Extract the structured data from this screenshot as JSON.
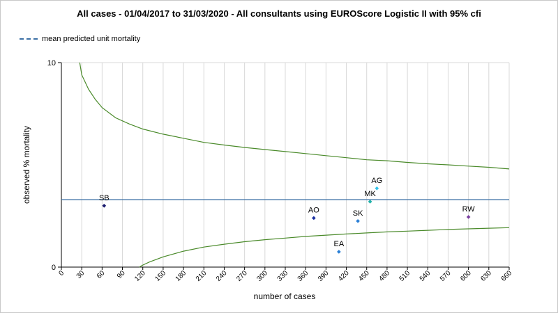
{
  "chart_data": {
    "type": "scatter",
    "title": "All cases - 01/04/2017 to 31/03/2020 - All consultants using EUROScore Logistic II with 95% cfi",
    "xlabel": "number of cases",
    "ylabel": "observed % mortality",
    "xlim": [
      0,
      660
    ],
    "ylim": [
      0,
      10
    ],
    "x_ticks": [
      "0",
      "30",
      "60",
      "90",
      "120",
      "150",
      "180",
      "210",
      "240",
      "270",
      "300",
      "330",
      "360",
      "390",
      "420",
      "450",
      "480",
      "510",
      "540",
      "570",
      "600",
      "630",
      "660"
    ],
    "y_ticks": [
      "0",
      "10"
    ],
    "grid": "vertical",
    "legend": {
      "position": "top-left",
      "entries": [
        {
          "label": "mean predicted unit mortality",
          "style": "dashed",
          "color": "#3a6fa5"
        }
      ]
    },
    "mean_predicted_mortality": 3.3,
    "control_limit_color": "#4a8a2a",
    "upper_control_limit": {
      "x": [
        27,
        30,
        40,
        50,
        60,
        80,
        100,
        120,
        150,
        180,
        210,
        240,
        270,
        300,
        330,
        360,
        390,
        420,
        450,
        480,
        510,
        540,
        570,
        600,
        630,
        660
      ],
      "y": [
        10.0,
        9.4,
        8.7,
        8.2,
        7.8,
        7.3,
        7.0,
        6.75,
        6.5,
        6.3,
        6.1,
        5.97,
        5.85,
        5.75,
        5.65,
        5.55,
        5.45,
        5.35,
        5.25,
        5.2,
        5.12,
        5.05,
        5.0,
        4.94,
        4.88,
        4.8
      ]
    },
    "lower_control_limit": {
      "x": [
        115,
        120,
        130,
        150,
        180,
        210,
        240,
        270,
        300,
        330,
        360,
        390,
        420,
        450,
        480,
        510,
        540,
        570,
        600,
        630,
        660
      ],
      "y": [
        0,
        0.1,
        0.25,
        0.5,
        0.78,
        0.98,
        1.12,
        1.24,
        1.34,
        1.42,
        1.5,
        1.56,
        1.62,
        1.67,
        1.72,
        1.76,
        1.8,
        1.84,
        1.87,
        1.9,
        1.93
      ]
    },
    "points": [
      {
        "label": "SB",
        "x": 63,
        "y": 3.0,
        "color": "#1a1a6e"
      },
      {
        "label": "AO",
        "x": 372,
        "y": 2.4,
        "color": "#1a2fa0"
      },
      {
        "label": "EA",
        "x": 409,
        "y": 0.75,
        "color": "#2a7fd6"
      },
      {
        "label": "SK",
        "x": 437,
        "y": 2.25,
        "color": "#2a7fd6"
      },
      {
        "label": "MK",
        "x": 455,
        "y": 3.2,
        "color": "#20b2aa"
      },
      {
        "label": "AG",
        "x": 465,
        "y": 3.85,
        "color": "#33c3e8"
      },
      {
        "label": "RW",
        "x": 600,
        "y": 2.45,
        "color": "#7b3fa0"
      }
    ]
  }
}
